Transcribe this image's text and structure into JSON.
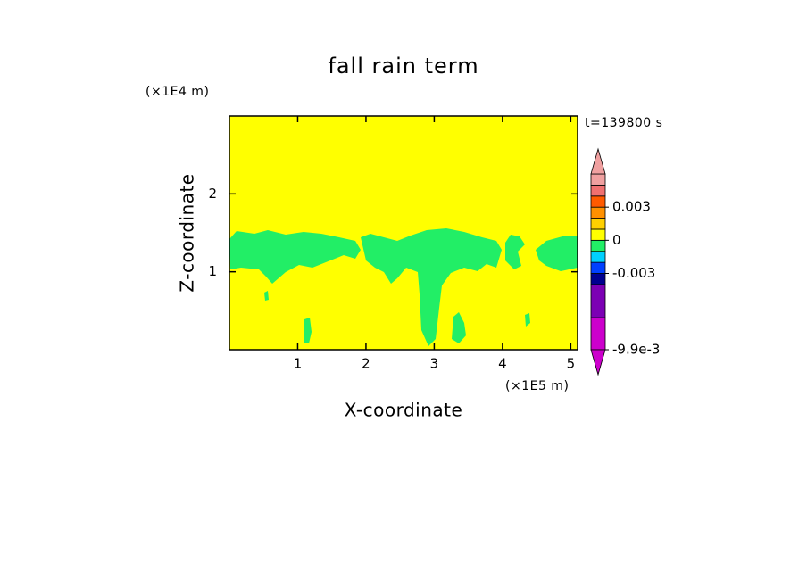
{
  "chart_data": {
    "type": "contour",
    "title": "fall rain term",
    "x_label": "X-coordinate",
    "y_label": "Z-coordinate",
    "x_unit": "(×1E5 m)",
    "y_unit": "(×1E4 m)",
    "time_label": "t=139800 s",
    "xlim": [
      0,
      5.1
    ],
    "ylim": [
      0,
      3
    ],
    "xticks": [
      1,
      2,
      3,
      4,
      5
    ],
    "yticks": [
      1,
      2
    ],
    "colorbar": {
      "levels": [
        -0.0099,
        -0.007,
        -0.004,
        -0.003,
        -0.002,
        -0.001,
        0,
        0.001,
        0.002,
        0.003,
        0.004,
        0.005,
        0.006
      ],
      "colors": [
        "#cc00cc",
        "#7c00b4",
        "#000090",
        "#0040ff",
        "#00d0ff",
        "#22ee66",
        "#ffff00",
        "#ffd000",
        "#ff9000",
        "#ff5a00",
        "#f07070",
        "#f0a0a0"
      ],
      "ticks": [
        0.003,
        0,
        -0.003,
        {
          "value": -0.0099,
          "label": "-9.9e-3"
        }
      ],
      "extend": "both"
    }
  }
}
